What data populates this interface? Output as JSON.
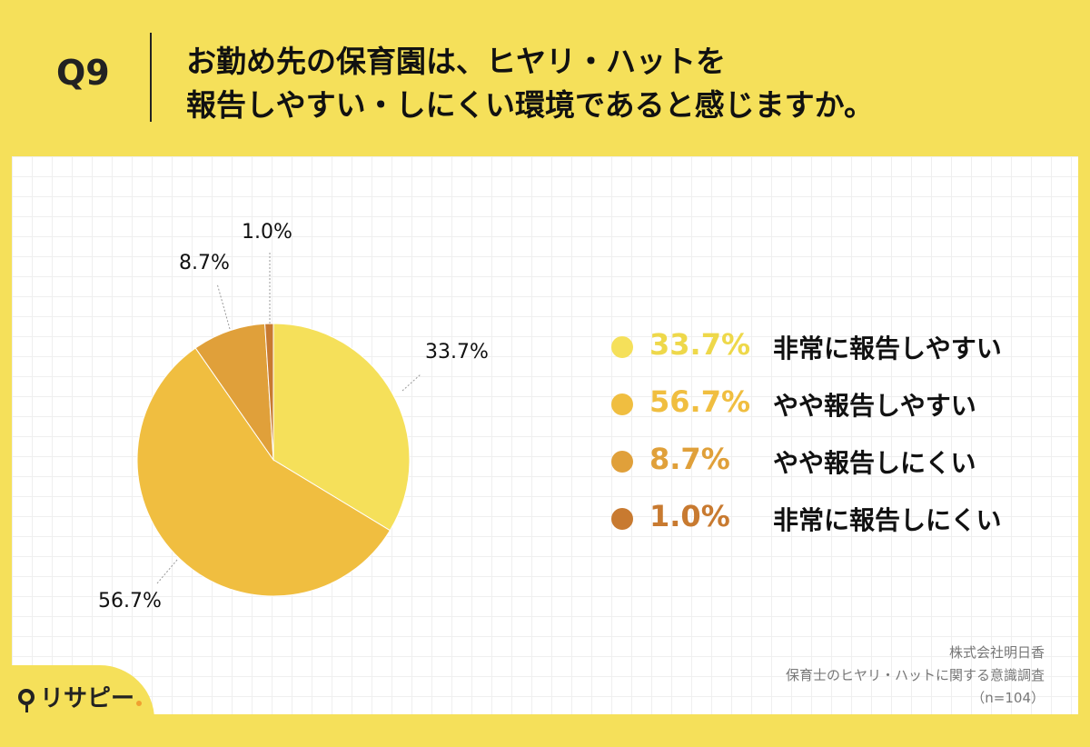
{
  "question": {
    "label": "Q9",
    "title_line1": "お勤め先の保育園は、ヒヤリ・ハットを",
    "title_line2": "報告しやすい・しにくい環境であると感じますか。"
  },
  "chart_data": {
    "type": "pie",
    "categories": [
      "非常に報告しやすい",
      "やや報告しやすい",
      "やや報告しにくい",
      "非常に報告しにくい"
    ],
    "values": [
      33.7,
      56.7,
      8.7,
      1.0
    ],
    "value_labels": [
      "33.7%",
      "56.7%",
      "8.7%",
      "1.0%"
    ],
    "colors": [
      "#f5e05a",
      "#f0be40",
      "#e0a03a",
      "#c87a30"
    ],
    "legend_placement": "right"
  },
  "legend": [
    {
      "pct": "33.7%",
      "label": "非常に報告しやすい",
      "color": "#f5e05a"
    },
    {
      "pct": "56.7%",
      "label": "やや報告しやすい",
      "color": "#f0be40"
    },
    {
      "pct": "8.7%",
      "label": "やや報告しにくい",
      "color": "#e0a03a"
    },
    {
      "pct": "1.0%",
      "label": "非常に報告しにくい",
      "color": "#c87a30"
    }
  ],
  "source": {
    "company": "株式会社明日香",
    "survey": "保育士のヒヤリ・ハットに関する意識調査",
    "sample": "（n=104）"
  },
  "logo": {
    "text": "リサピー"
  }
}
